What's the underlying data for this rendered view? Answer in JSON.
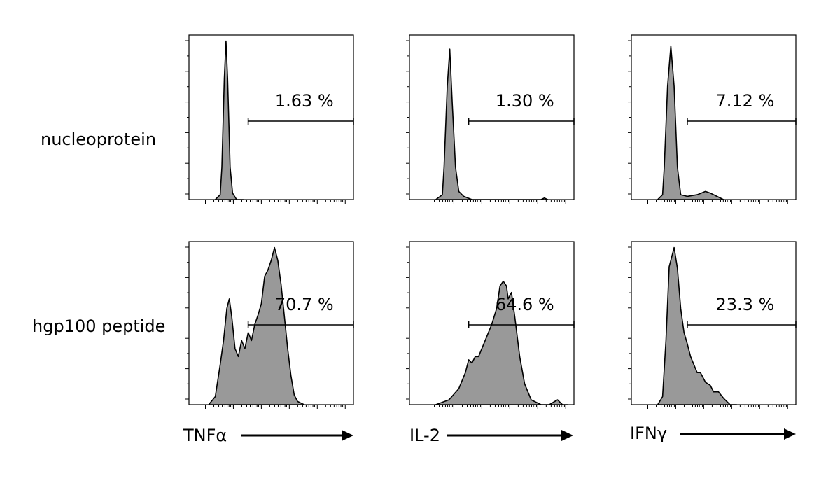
{
  "chart_data": {
    "type": "area",
    "rows": [
      "nucleoprotein",
      "hgp100 peptide"
    ],
    "markers": [
      "TNFα",
      "IL-2",
      "IFNγ"
    ],
    "x_scale": "log",
    "panels": [
      {
        "row": "nucleoprotein",
        "marker": "TNFα",
        "gate_percent": "1.63 %",
        "gate_range": [
          0.36,
          1.0
        ],
        "x": [
          0.16,
          0.19,
          0.2,
          0.215,
          0.225,
          0.235,
          0.25,
          0.265,
          0.29,
          0.33
        ],
        "y": [
          0.0,
          0.03,
          0.2,
          0.75,
          0.98,
          0.75,
          0.2,
          0.04,
          0.0,
          0.0
        ]
      },
      {
        "row": "nucleoprotein",
        "marker": "IL-2",
        "gate_percent": "1.30 %",
        "gate_range": [
          0.36,
          1.0
        ],
        "x": [
          0.16,
          0.2,
          0.21,
          0.23,
          0.245,
          0.26,
          0.28,
          0.3,
          0.33,
          0.38,
          0.8,
          0.82,
          0.84
        ],
        "y": [
          0.0,
          0.03,
          0.2,
          0.7,
          0.93,
          0.6,
          0.2,
          0.05,
          0.02,
          0.0,
          0.0,
          0.01,
          0.0
        ],
        "ylabels": [
          "",
          "",
          "",
          "",
          ""
        ]
      },
      {
        "row": "nucleoprotein",
        "marker": "IFNγ",
        "gate_percent": "7.12 %",
        "gate_range": [
          0.34,
          1.0
        ],
        "x": [
          0.16,
          0.19,
          0.2,
          0.22,
          0.24,
          0.26,
          0.28,
          0.3,
          0.34,
          0.4,
          0.45,
          0.48,
          0.52,
          0.56
        ],
        "y": [
          0.0,
          0.03,
          0.2,
          0.7,
          0.95,
          0.7,
          0.2,
          0.03,
          0.02,
          0.03,
          0.05,
          0.04,
          0.02,
          0.0
        ]
      },
      {
        "row": "hgp100 peptide",
        "marker": "TNFα",
        "gate_percent": "70.7 %",
        "gate_range": [
          0.36,
          1.0
        ],
        "x": [
          0.12,
          0.16,
          0.19,
          0.21,
          0.23,
          0.245,
          0.26,
          0.28,
          0.3,
          0.32,
          0.34,
          0.36,
          0.38,
          0.4,
          0.42,
          0.44,
          0.46,
          0.48,
          0.5,
          0.52,
          0.54,
          0.56,
          0.58,
          0.6,
          0.62,
          0.64,
          0.66,
          0.7
        ],
        "y": [
          0.0,
          0.05,
          0.25,
          0.4,
          0.6,
          0.66,
          0.55,
          0.35,
          0.3,
          0.4,
          0.35,
          0.45,
          0.4,
          0.5,
          0.56,
          0.63,
          0.8,
          0.84,
          0.9,
          0.98,
          0.9,
          0.75,
          0.55,
          0.35,
          0.18,
          0.06,
          0.02,
          0.0
        ]
      },
      {
        "row": "hgp100 peptide",
        "marker": "IL-2",
        "gate_percent": "64.6 %",
        "gate_range": [
          0.36,
          1.0
        ],
        "x": [
          0.16,
          0.24,
          0.3,
          0.34,
          0.36,
          0.38,
          0.4,
          0.42,
          0.46,
          0.5,
          0.53,
          0.55,
          0.57,
          0.59,
          0.6,
          0.62,
          0.64,
          0.67,
          0.7,
          0.74,
          0.8,
          0.85,
          0.9,
          0.93,
          0.96
        ],
        "y": [
          0.0,
          0.03,
          0.1,
          0.2,
          0.28,
          0.26,
          0.3,
          0.3,
          0.4,
          0.5,
          0.6,
          0.74,
          0.77,
          0.74,
          0.66,
          0.7,
          0.55,
          0.3,
          0.13,
          0.03,
          0.0,
          0.0,
          0.03,
          0.0,
          0.0
        ],
        "ylabels": [
          "",
          "",
          "",
          "",
          ""
        ]
      },
      {
        "row": "hgp100 peptide",
        "marker": "IFNγ",
        "gate_percent": "23.3 %",
        "gate_range": [
          0.34,
          1.0
        ],
        "x": [
          0.16,
          0.19,
          0.21,
          0.23,
          0.26,
          0.28,
          0.3,
          0.32,
          0.34,
          0.36,
          0.38,
          0.4,
          0.42,
          0.45,
          0.48,
          0.5,
          0.53,
          0.56,
          0.6,
          0.64
        ],
        "y": [
          0.0,
          0.05,
          0.4,
          0.86,
          0.98,
          0.85,
          0.6,
          0.45,
          0.38,
          0.3,
          0.25,
          0.2,
          0.2,
          0.14,
          0.12,
          0.08,
          0.08,
          0.04,
          0.0,
          0.0
        ]
      }
    ]
  }
}
